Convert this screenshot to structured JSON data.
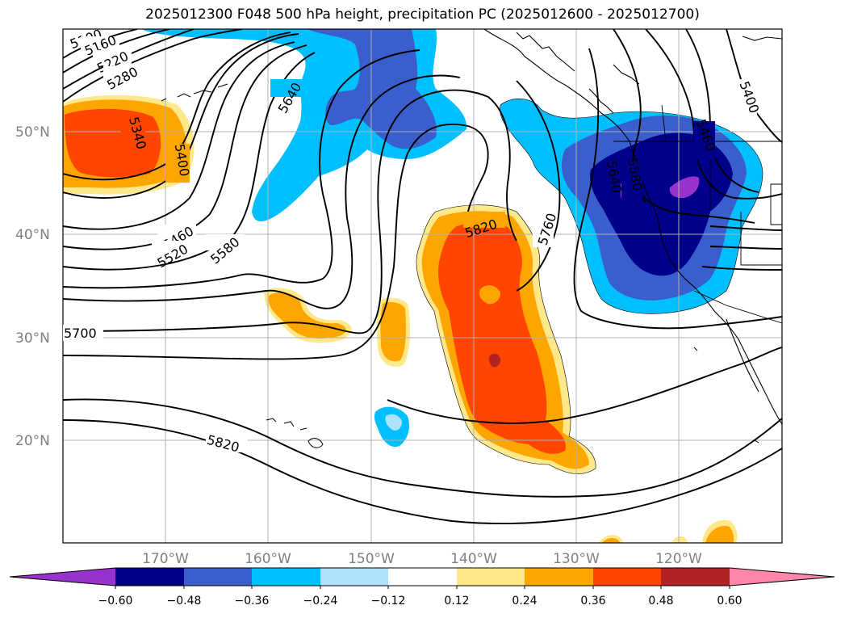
{
  "title": "2025012300 F048 500 hPa height, precipitation PC (2025012600 - 2025012700)",
  "map": {
    "latitude_labels": [
      "50°N",
      "40°N",
      "30°N",
      "20°N"
    ],
    "longitude_labels": [
      "170°W",
      "160°W",
      "150°W",
      "140°W",
      "130°W",
      "120°W"
    ],
    "contour_labels": [
      "5100",
      "5160",
      "5220",
      "5280",
      "5340",
      "5400",
      "5460",
      "5520",
      "5580",
      "5640",
      "5700",
      "5820",
      "5760",
      "5820",
      "5460",
      "5580",
      "5640",
      "5400"
    ],
    "colors": {
      "land_outline": "#000000",
      "gridline": "#b0b0b0"
    }
  },
  "colorbar": {
    "tick_labels": [
      "−0.60",
      "−0.48",
      "−0.36",
      "−0.24",
      "−0.12",
      "0.12",
      "0.24",
      "0.36",
      "0.48",
      "0.60"
    ],
    "colors": [
      "#9932cc",
      "#00008b",
      "#3a5fcd",
      "#00bfff",
      "#aee1fa",
      "#ffffff",
      "#ffe88a",
      "#ffa500",
      "#ff4500",
      "#b22222",
      "#ff88aa"
    ],
    "extend": "both"
  }
}
